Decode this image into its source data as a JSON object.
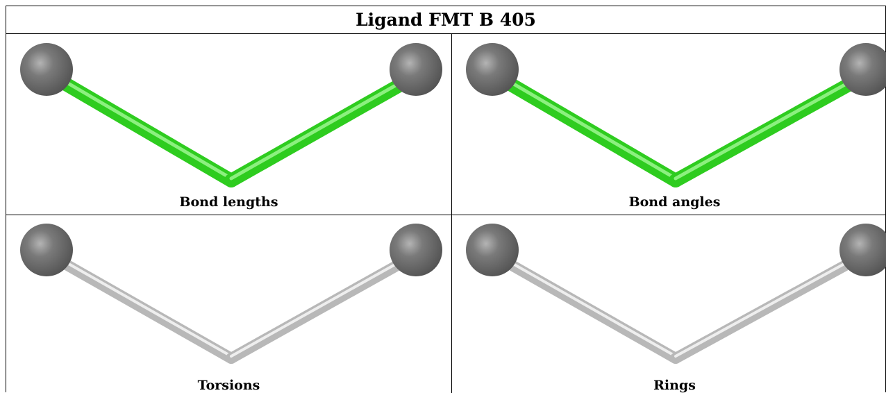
{
  "title": "Ligand FMT B 405",
  "panels": [
    {
      "caption": "Bond lengths",
      "bond_color": "green"
    },
    {
      "caption": "Bond angles",
      "bond_color": "green"
    },
    {
      "caption": "Torsions",
      "bond_color": "grey"
    },
    {
      "caption": "Rings",
      "bond_color": "grey"
    }
  ],
  "colors": {
    "green_bond": "#2ecc1f",
    "green_highlight": "#8cf07f",
    "grey_bond": "#b8b8b8",
    "grey_highlight": "#eeeeee",
    "atom": "#6e6e6e",
    "atom_highlight": "#a8a8a8",
    "border": "#000000"
  }
}
